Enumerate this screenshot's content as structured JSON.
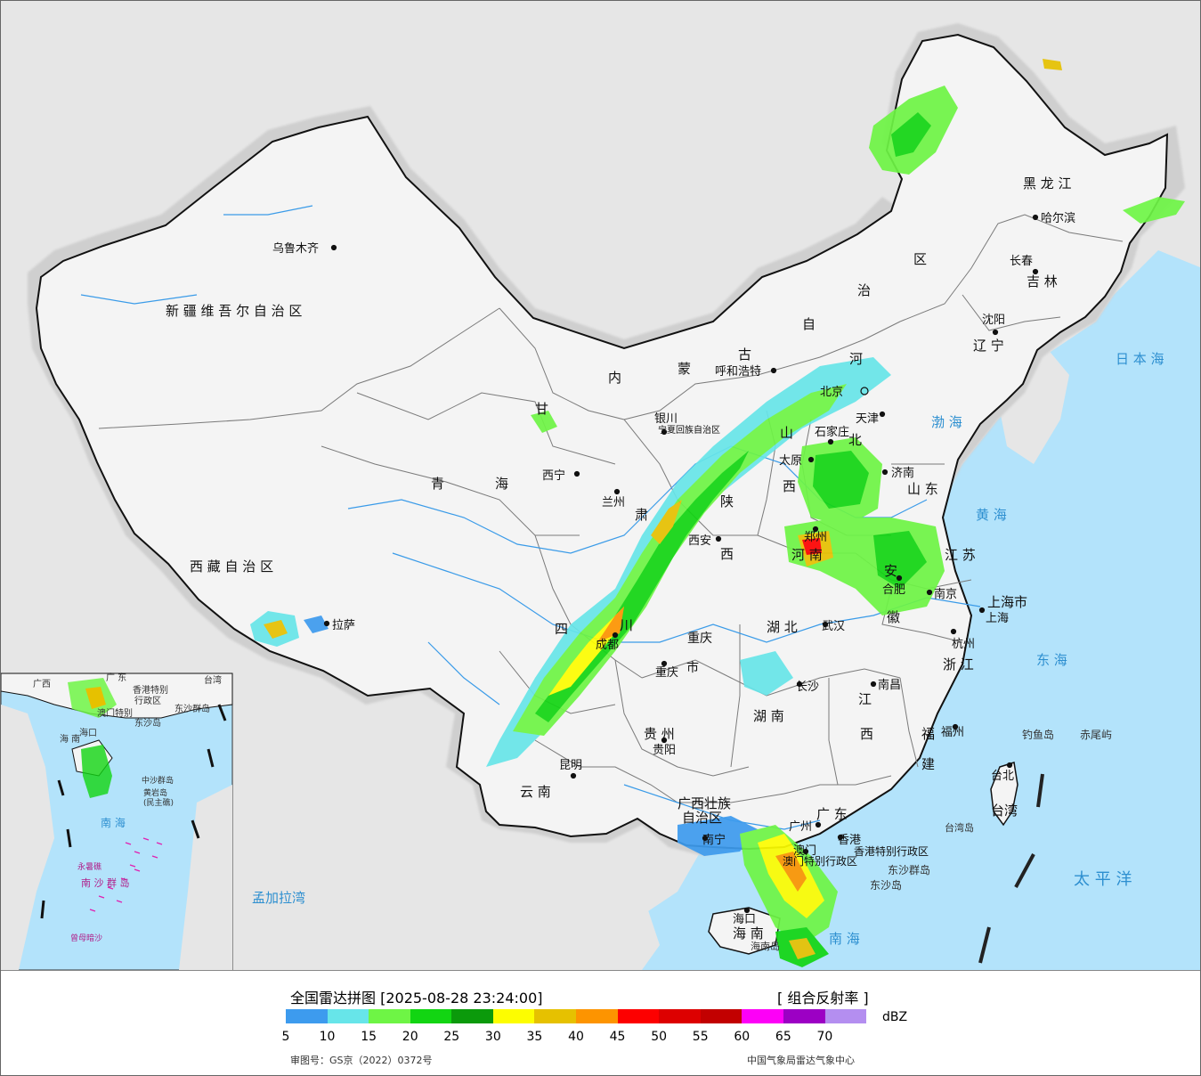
{
  "map": {
    "province_labels": [
      {
        "id": "xinjiang",
        "text": "新 疆 维 吾 尔 自 治 区"
      },
      {
        "id": "xizang",
        "text": "西 藏 自 治 区"
      },
      {
        "id": "qinghai_1",
        "text": "青"
      },
      {
        "id": "qinghai_2",
        "text": "海"
      },
      {
        "id": "gansu_1",
        "text": "甘"
      },
      {
        "id": "gansu_2",
        "text": "肃"
      },
      {
        "id": "neimeng_1",
        "text": "内"
      },
      {
        "id": "neimeng_2",
        "text": "蒙"
      },
      {
        "id": "neimeng_3",
        "text": "古"
      },
      {
        "id": "neimeng_4",
        "text": "自"
      },
      {
        "id": "neimeng_5",
        "text": "治"
      },
      {
        "id": "neimeng_6",
        "text": "区"
      },
      {
        "id": "heilongjiang",
        "text": "黑 龙 江"
      },
      {
        "id": "jilin",
        "text": "吉 林"
      },
      {
        "id": "liaoning",
        "text": "辽 宁"
      },
      {
        "id": "hebei_1",
        "text": "河"
      },
      {
        "id": "hebei_2",
        "text": "北"
      },
      {
        "id": "shanxi_1",
        "text": "山"
      },
      {
        "id": "shanxi_2",
        "text": "西"
      },
      {
        "id": "shandong",
        "text": "山 东"
      },
      {
        "id": "shaanxi_1",
        "text": "陕"
      },
      {
        "id": "shaanxi_2",
        "text": "西"
      },
      {
        "id": "henan",
        "text": "河 南"
      },
      {
        "id": "jiangsu",
        "text": "江 苏"
      },
      {
        "id": "anhui_1",
        "text": "安"
      },
      {
        "id": "anhui_2",
        "text": "徽"
      },
      {
        "id": "shanghai",
        "text": "上海市"
      },
      {
        "id": "hubei",
        "text": "湖 北"
      },
      {
        "id": "zhejiang",
        "text": "浙 江"
      },
      {
        "id": "sichuan_1",
        "text": "四"
      },
      {
        "id": "sichuan_2",
        "text": "川"
      },
      {
        "id": "chongqing_1",
        "text": "重庆"
      },
      {
        "id": "chongqing_2",
        "text": "市"
      },
      {
        "id": "jiangxi_1",
        "text": "江"
      },
      {
        "id": "jiangxi_2",
        "text": "西"
      },
      {
        "id": "hunan",
        "text": "湖 南"
      },
      {
        "id": "guizhou",
        "text": "贵 州"
      },
      {
        "id": "fujian_1",
        "text": "福"
      },
      {
        "id": "fujian_2",
        "text": "建"
      },
      {
        "id": "yunnan",
        "text": "云 南"
      },
      {
        "id": "guangxi_1",
        "text": "广西壮族"
      },
      {
        "id": "guangxi_2",
        "text": "自治区"
      },
      {
        "id": "guangdong",
        "text": "广 东"
      },
      {
        "id": "taiwan",
        "text": "台湾"
      },
      {
        "id": "hainan",
        "text": "海 南"
      },
      {
        "id": "hk",
        "text": "香港特别行政区"
      },
      {
        "id": "macau",
        "text": "澳门特别行政区"
      },
      {
        "id": "ningxia",
        "text": "宁夏回族自治区"
      }
    ],
    "cities": [
      {
        "id": "urumqi",
        "text": "乌鲁木齐"
      },
      {
        "id": "lhasa",
        "text": "拉萨"
      },
      {
        "id": "xining",
        "text": "西宁"
      },
      {
        "id": "lanzhou",
        "text": "兰州"
      },
      {
        "id": "yinchuan",
        "text": "银川"
      },
      {
        "id": "hohhot",
        "text": "呼和浩特"
      },
      {
        "id": "beijing",
        "text": "北京"
      },
      {
        "id": "tianjin",
        "text": "天津"
      },
      {
        "id": "shijiazhuang",
        "text": "石家庄"
      },
      {
        "id": "taiyuan",
        "text": "太原"
      },
      {
        "id": "jinan",
        "text": "济南"
      },
      {
        "id": "xian",
        "text": "西安"
      },
      {
        "id": "zhengzhou",
        "text": "郑州"
      },
      {
        "id": "hefei",
        "text": "合肥"
      },
      {
        "id": "nanjing",
        "text": "南京"
      },
      {
        "id": "shanghai_city",
        "text": "上海"
      },
      {
        "id": "hangzhou",
        "text": "杭州"
      },
      {
        "id": "wuhan",
        "text": "武汉"
      },
      {
        "id": "chengdu",
        "text": "成都"
      },
      {
        "id": "chongqing_city",
        "text": "重庆"
      },
      {
        "id": "nanchang",
        "text": "南昌"
      },
      {
        "id": "changsha",
        "text": "长沙"
      },
      {
        "id": "guiyang",
        "text": "贵阳"
      },
      {
        "id": "fuzhou",
        "text": "福州"
      },
      {
        "id": "kunming",
        "text": "昆明"
      },
      {
        "id": "nanning",
        "text": "南宁"
      },
      {
        "id": "guangzhou",
        "text": "广州"
      },
      {
        "id": "hongkong",
        "text": "香港"
      },
      {
        "id": "macau_city",
        "text": "澳门"
      },
      {
        "id": "taipei",
        "text": "台北"
      },
      {
        "id": "haikou",
        "text": "海口"
      },
      {
        "id": "harbin",
        "text": "哈尔滨"
      },
      {
        "id": "changchun",
        "text": "长春"
      },
      {
        "id": "shenyang",
        "text": "沈阳"
      }
    ],
    "water_labels": [
      {
        "id": "bohai",
        "text": "渤 海"
      },
      {
        "id": "huanghai",
        "text": "黄 海"
      },
      {
        "id": "donghai",
        "text": "东 海"
      },
      {
        "id": "nanhai",
        "text": "南 海"
      },
      {
        "id": "riben",
        "text": "日 本 海"
      },
      {
        "id": "taiping",
        "text": "太 平 洋"
      },
      {
        "id": "mengjiala",
        "text": "孟加拉湾"
      }
    ],
    "island_labels": [
      {
        "id": "diaoyu",
        "text": "钓鱼岛"
      },
      {
        "id": "chiwei",
        "text": "赤尾屿"
      },
      {
        "id": "dongsha_qd",
        "text": "东沙群岛"
      },
      {
        "id": "dongsha",
        "text": "东沙岛"
      },
      {
        "id": "hainan_dao",
        "text": "海南岛"
      },
      {
        "id": "taiwan_dao",
        "text": "台湾岛"
      }
    ],
    "inset_labels": [
      {
        "id": "in_guangxi",
        "text": "广西"
      },
      {
        "id": "in_guangdong",
        "text": "广 东"
      },
      {
        "id": "in_taiwan",
        "text": "台湾"
      },
      {
        "id": "in_hk",
        "text": "香港特别"
      },
      {
        "id": "in_hk2",
        "text": "行政区"
      },
      {
        "id": "in_macau",
        "text": "澳门特别"
      },
      {
        "id": "in_dongsha_qd",
        "text": "东沙群岛"
      },
      {
        "id": "in_dongsha",
        "text": "东沙岛"
      },
      {
        "id": "in_haikou",
        "text": "海口"
      },
      {
        "id": "in_hainan",
        "text": "海 南"
      },
      {
        "id": "in_zhongsha",
        "text": "中沙群岛"
      },
      {
        "id": "in_huangyan",
        "text": "黄岩岛"
      },
      {
        "id": "in_minzhu",
        "text": "(民主礁)"
      },
      {
        "id": "in_nanhai",
        "text": "南 海"
      },
      {
        "id": "in_yongshu",
        "text": "永暑礁"
      },
      {
        "id": "in_nansha",
        "text": "南 沙 群 岛"
      },
      {
        "id": "in_zengmu",
        "text": "曾母暗沙"
      }
    ],
    "colors": {
      "sea": "#b3e3fb",
      "foreign_land": "#e6e6e6",
      "china_land": "#f4f4f4",
      "buffer": "#cfcfcf",
      "border": "#111111",
      "province_border": "#7a7a7a",
      "river": "#3a9be8"
    }
  },
  "legend": {
    "title": "全国雷达拼图 [2025-08-28 23:24:00]",
    "product": "[ 组合反射率 ]",
    "unit": "dBZ",
    "scale_values": [
      "5",
      "10",
      "15",
      "20",
      "25",
      "30",
      "35",
      "40",
      "45",
      "50",
      "55",
      "60",
      "65",
      "70"
    ],
    "colors": [
      "#3d9bee",
      "#67e5e9",
      "#6ef545",
      "#12d512",
      "#0b9a0b",
      "#fdfd00",
      "#e6c100",
      "#fd9400",
      "#fd0000",
      "#dd0000",
      "#c20000",
      "#fd00f7",
      "#9c00c4",
      "#b48ef0"
    ],
    "approval_no": "审图号：GS京（2022）0372号",
    "agency": "中国气象局雷达气象中心"
  }
}
